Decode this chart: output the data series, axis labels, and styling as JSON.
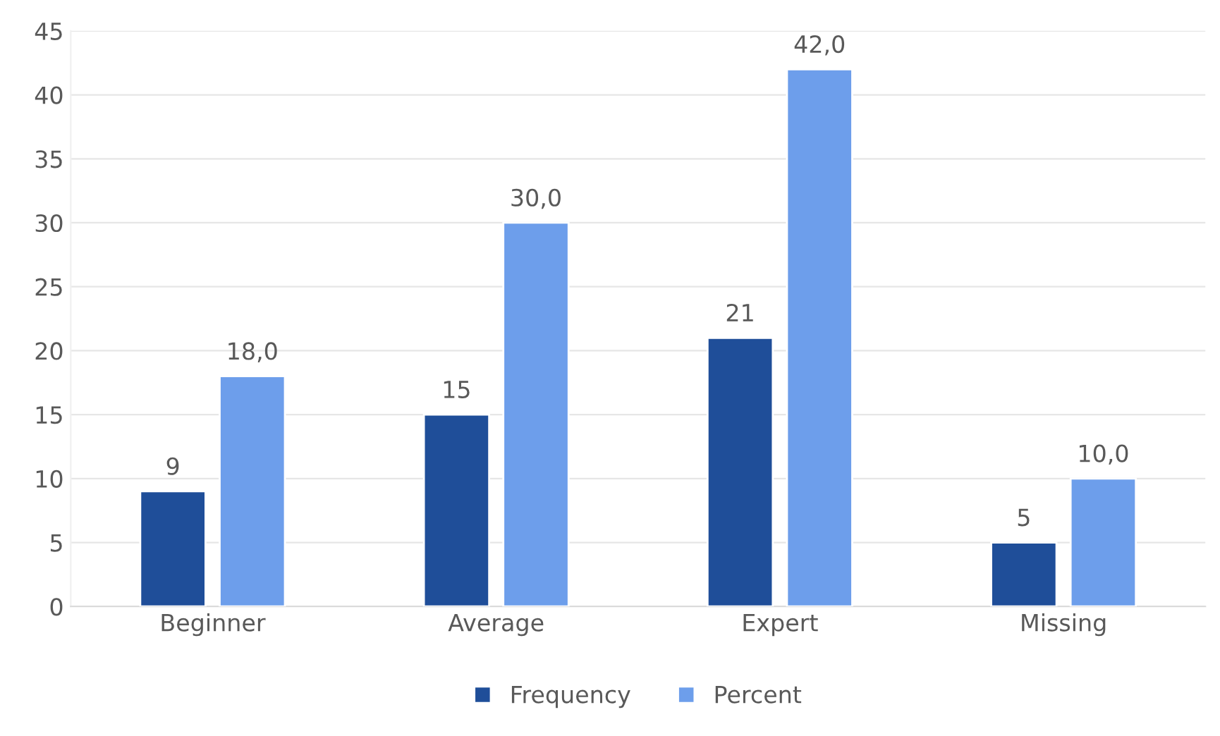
{
  "chart_data": {
    "type": "bar",
    "categories": [
      "Beginner",
      "Average",
      "Expert",
      "Missing"
    ],
    "series": [
      {
        "name": "Frequency",
        "color": "#1f4e99",
        "values": [
          9,
          15,
          21,
          5
        ],
        "value_labels": [
          "9",
          "15",
          "21",
          "5"
        ]
      },
      {
        "name": "Percent",
        "color": "#6d9eeb",
        "values": [
          18,
          30,
          42,
          10
        ],
        "value_labels": [
          "18,0",
          "30,0",
          "42,0",
          "10,0"
        ]
      }
    ],
    "ylim": [
      0,
      45
    ],
    "yticks": [
      0,
      5,
      10,
      15,
      20,
      25,
      30,
      35,
      40,
      45
    ],
    "grid": "y",
    "legend": "bottom"
  }
}
